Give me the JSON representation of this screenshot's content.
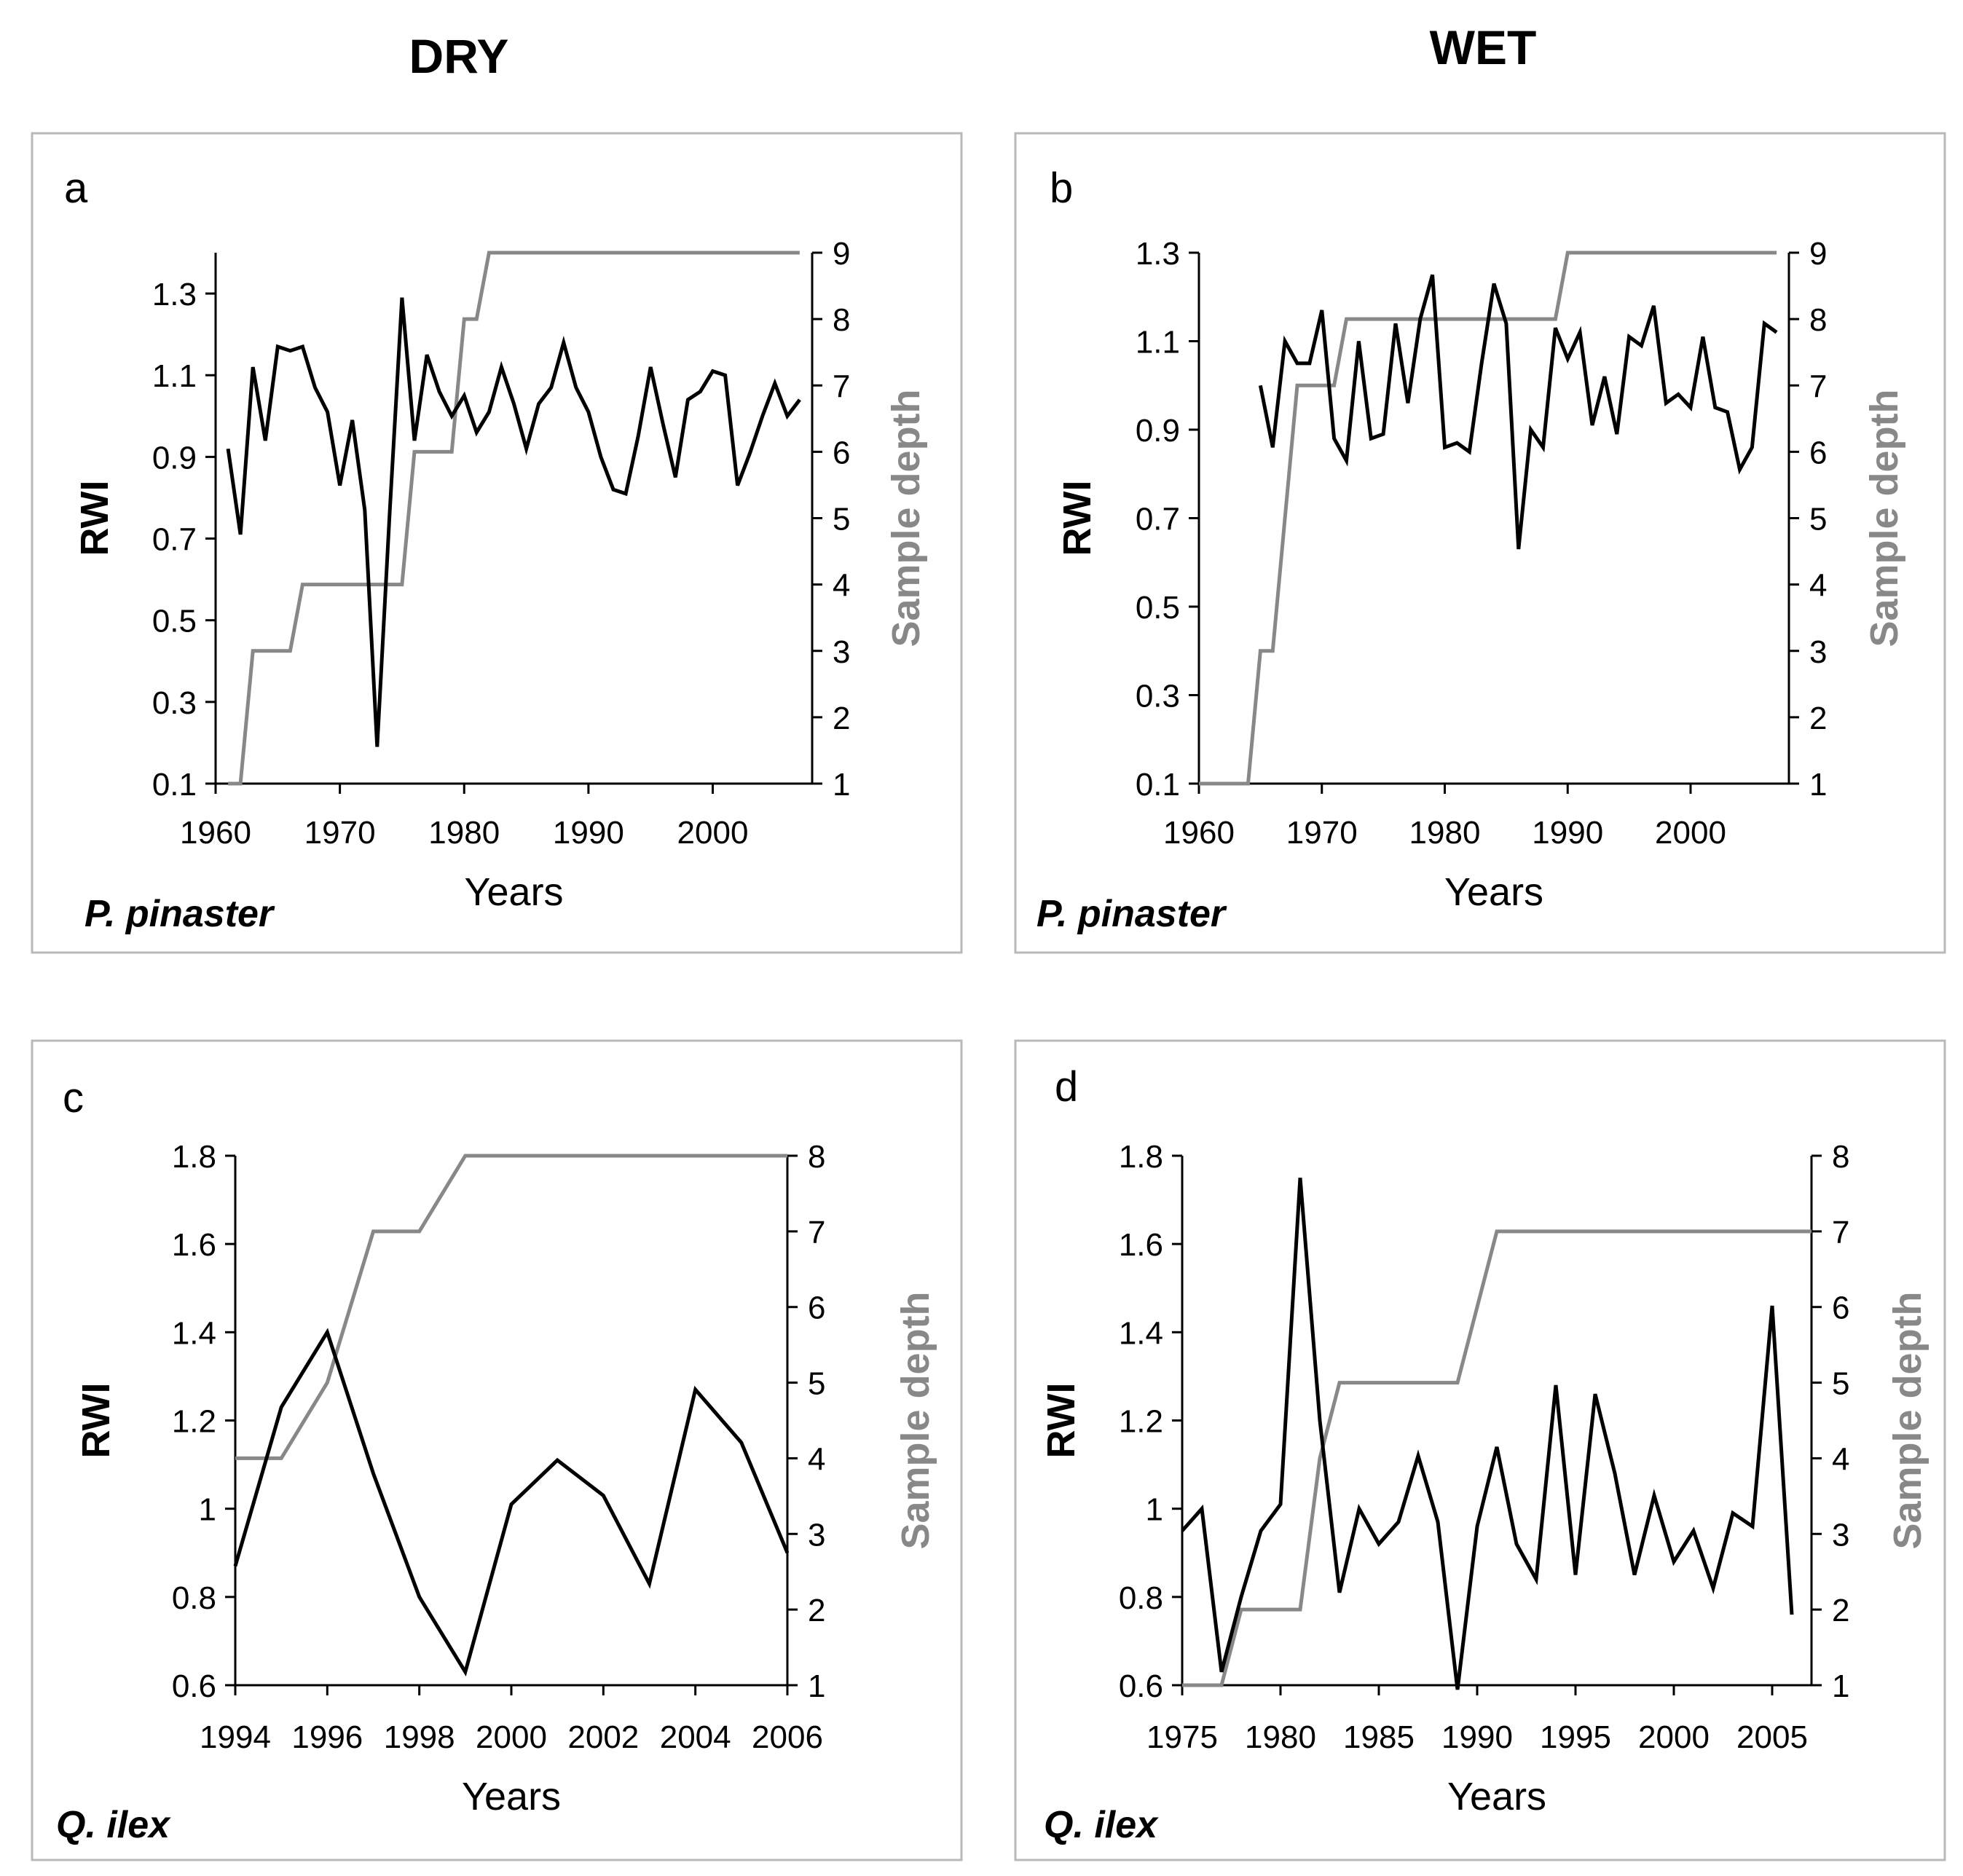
{
  "headers": {
    "dry": "DRY",
    "wet": "WET"
  },
  "colors": {
    "rwi": "#000000",
    "depth": "#888888",
    "frame": "#b9b9b9"
  },
  "chart_data": [
    {
      "type": "line",
      "panel": "a",
      "species": "P. pinaster",
      "xlabel": "Years",
      "ylabel": "RWI",
      "y2label": "Sample depth",
      "xlim": [
        1960,
        2008
      ],
      "xticks": [
        "1960",
        "1970",
        "1980",
        "1990",
        "2000"
      ],
      "xtick_values": [
        1960,
        1970,
        1980,
        1990,
        2000
      ],
      "ylim": [
        0.1,
        1.4
      ],
      "yticks": [
        "0.1",
        "0.3",
        "0.5",
        "0.7",
        "0.9",
        "1.1",
        "1.3"
      ],
      "ytick_values": [
        0.1,
        0.3,
        0.5,
        0.7,
        0.9,
        1.1,
        1.3
      ],
      "y2lim": [
        1,
        9
      ],
      "y2ticks": [
        "1",
        "2",
        "3",
        "4",
        "5",
        "6",
        "7",
        "8",
        "9"
      ],
      "y2tick_values": [
        1,
        2,
        3,
        4,
        5,
        6,
        7,
        8,
        9
      ],
      "series": [
        {
          "name": "RWI",
          "axis": "left",
          "x": [
            1961,
            1962,
            1963,
            1964,
            1965,
            1966,
            1967,
            1968,
            1969,
            1970,
            1971,
            1972,
            1973,
            1974,
            1975,
            1976,
            1977,
            1978,
            1979,
            1980,
            1981,
            1982,
            1983,
            1984,
            1985,
            1986,
            1987,
            1988,
            1989,
            1990,
            1991,
            1992,
            1993,
            1994,
            1995,
            1996,
            1997,
            1998,
            1999,
            2000,
            2001,
            2002,
            2003,
            2004,
            2005,
            2006,
            2007
          ],
          "values": [
            0.92,
            0.71,
            1.12,
            0.94,
            1.17,
            1.16,
            1.17,
            1.07,
            1.01,
            0.83,
            0.99,
            0.77,
            0.19,
            0.76,
            1.29,
            0.94,
            1.15,
            1.06,
            1.0,
            1.05,
            0.96,
            1.01,
            1.12,
            1.03,
            0.92,
            1.03,
            1.07,
            1.18,
            1.07,
            1.01,
            0.9,
            0.82,
            0.81,
            0.95,
            1.12,
            0.98,
            0.85,
            1.04,
            1.06,
            1.11,
            1.1,
            0.83,
            0.91,
            1.0,
            1.08,
            1.0,
            1.04
          ]
        },
        {
          "name": "Sample depth",
          "axis": "right",
          "step": true,
          "x": [
            1961,
            1962,
            1963,
            1964,
            1965,
            1966,
            1967,
            1968,
            1969,
            1970,
            1971,
            1972,
            1973,
            1974,
            1975,
            1976,
            1977,
            1978,
            1979,
            1980,
            1981,
            1982,
            1983,
            2007
          ],
          "values": [
            1,
            1,
            3,
            3,
            3,
            3,
            4,
            4,
            4,
            4,
            4,
            4,
            4,
            4,
            4,
            6,
            6,
            6,
            6,
            8,
            8,
            9,
            9,
            9
          ]
        }
      ]
    },
    {
      "type": "line",
      "panel": "b",
      "species": "P. pinaster",
      "xlabel": "Years",
      "ylabel": "RWI",
      "y2label": "Sample depth",
      "xlim": [
        1960,
        2008
      ],
      "xticks": [
        "1960",
        "1970",
        "1980",
        "1990",
        "2000"
      ],
      "xtick_values": [
        1960,
        1970,
        1980,
        1990,
        2000
      ],
      "ylim": [
        0.1,
        1.3
      ],
      "yticks": [
        "0.1",
        "0.3",
        "0.5",
        "0.7",
        "0.9",
        "1.1",
        "1.3"
      ],
      "ytick_values": [
        0.1,
        0.3,
        0.5,
        0.7,
        0.9,
        1.1,
        1.3
      ],
      "y2lim": [
        1,
        9
      ],
      "y2ticks": [
        "1",
        "2",
        "3",
        "4",
        "5",
        "6",
        "7",
        "8",
        "9"
      ],
      "y2tick_values": [
        1,
        2,
        3,
        4,
        5,
        6,
        7,
        8,
        9
      ],
      "series": [
        {
          "name": "RWI",
          "axis": "left",
          "x": [
            1965,
            1966,
            1967,
            1968,
            1969,
            1970,
            1971,
            1972,
            1973,
            1974,
            1975,
            1976,
            1977,
            1978,
            1979,
            1980,
            1981,
            1982,
            1983,
            1984,
            1985,
            1986,
            1987,
            1988,
            1989,
            1990,
            1991,
            1992,
            1993,
            1994,
            1995,
            1996,
            1997,
            1998,
            1999,
            2000,
            2001,
            2002,
            2003,
            2004,
            2005,
            2006,
            2007
          ],
          "values": [
            1.0,
            0.86,
            1.1,
            1.05,
            1.05,
            1.17,
            0.88,
            0.83,
            1.1,
            0.88,
            0.89,
            1.14,
            0.96,
            1.15,
            1.25,
            0.86,
            0.87,
            0.85,
            1.05,
            1.23,
            1.14,
            0.63,
            0.9,
            0.86,
            1.13,
            1.06,
            1.12,
            0.91,
            1.02,
            0.89,
            1.11,
            1.09,
            1.18,
            0.96,
            0.98,
            0.95,
            1.11,
            0.95,
            0.94,
            0.81,
            0.86,
            1.14,
            1.12
          ]
        },
        {
          "name": "Sample depth",
          "axis": "right",
          "step": true,
          "x": [
            1960,
            1964,
            1965,
            1966,
            1967,
            1968,
            1969,
            1970,
            1971,
            1972,
            1973,
            1989,
            1990,
            1991,
            2007
          ],
          "values": [
            1,
            1,
            3,
            3,
            5,
            7,
            7,
            7,
            7,
            8,
            8,
            8,
            9,
            9,
            9
          ]
        }
      ]
    },
    {
      "type": "line",
      "panel": "c",
      "species": "Q. ilex",
      "xlabel": "Years",
      "ylabel": "RWI",
      "y2label": "Sample depth",
      "xlim": [
        1994,
        2006
      ],
      "xticks": [
        "1994",
        "1996",
        "1998",
        "2000",
        "2002",
        "2004",
        "2006"
      ],
      "xtick_values": [
        1994,
        1996,
        1998,
        2000,
        2002,
        2004,
        2006
      ],
      "ylim": [
        0.6,
        1.8
      ],
      "yticks": [
        "0.6",
        "0.8",
        "1",
        "1.2",
        "1.4",
        "1.6",
        "1.8"
      ],
      "ytick_values": [
        0.6,
        0.8,
        1.0,
        1.2,
        1.4,
        1.6,
        1.8
      ],
      "y2lim": [
        1,
        8
      ],
      "y2ticks": [
        "1",
        "2",
        "3",
        "4",
        "5",
        "6",
        "7",
        "8"
      ],
      "y2tick_values": [
        1,
        2,
        3,
        4,
        5,
        6,
        7,
        8
      ],
      "series": [
        {
          "name": "RWI",
          "axis": "left",
          "x": [
            1994,
            1995,
            1996,
            1997,
            1998,
            1999,
            2000,
            2001,
            2002,
            2003,
            2004,
            2005,
            2006
          ],
          "values": [
            0.87,
            1.23,
            1.4,
            1.08,
            0.8,
            0.63,
            1.01,
            1.11,
            1.03,
            0.83,
            1.27,
            1.15,
            0.9
          ]
        },
        {
          "name": "Sample depth",
          "axis": "right",
          "x": [
            1994,
            1995,
            1996,
            1997,
            1998,
            1999,
            2006
          ],
          "values": [
            4,
            4,
            5,
            7,
            7,
            8,
            8
          ]
        }
      ]
    },
    {
      "type": "line",
      "panel": "d",
      "species": "Q. ilex",
      "xlabel": "Years",
      "ylabel": "RWI",
      "y2label": "Sample depth",
      "xlim": [
        1975,
        2007
      ],
      "xticks": [
        "1975",
        "1980",
        "1985",
        "1990",
        "1995",
        "2000",
        "2005"
      ],
      "xtick_values": [
        1975,
        1980,
        1985,
        1990,
        1995,
        2000,
        2005
      ],
      "ylim": [
        0.6,
        1.8
      ],
      "yticks": [
        "0.6",
        "0.8",
        "1",
        "1.2",
        "1.4",
        "1.6",
        "1.8"
      ],
      "ytick_values": [
        0.6,
        0.8,
        1.0,
        1.2,
        1.4,
        1.6,
        1.8
      ],
      "y2lim": [
        1,
        8
      ],
      "y2ticks": [
        "1",
        "2",
        "3",
        "4",
        "5",
        "6",
        "7",
        "8"
      ],
      "y2tick_values": [
        1,
        2,
        3,
        4,
        5,
        6,
        7,
        8
      ],
      "series": [
        {
          "name": "RWI",
          "axis": "left",
          "x": [
            1975,
            1976,
            1977,
            1978,
            1979,
            1980,
            1981,
            1982,
            1983,
            1984,
            1985,
            1986,
            1987,
            1988,
            1989,
            1990,
            1991,
            1992,
            1993,
            1994,
            1995,
            1996,
            1997,
            1998,
            1999,
            2000,
            2001,
            2002,
            2003,
            2004,
            2005,
            2006
          ],
          "values": [
            0.95,
            1.0,
            0.63,
            0.8,
            0.95,
            1.01,
            1.75,
            1.2,
            0.81,
            1.0,
            0.92,
            0.97,
            1.12,
            0.97,
            0.59,
            0.96,
            1.14,
            0.92,
            0.84,
            1.28,
            0.85,
            1.26,
            1.08,
            0.85,
            1.03,
            0.88,
            0.95,
            0.82,
            0.99,
            0.96,
            1.46,
            0.76
          ]
        },
        {
          "name": "Sample depth",
          "axis": "right",
          "x": [
            1975,
            1977,
            1978,
            1979,
            1980,
            1981,
            1982,
            1983,
            1984,
            1985,
            1986,
            1987,
            1988,
            1989,
            1990,
            1991,
            2007
          ],
          "values": [
            1,
            1,
            2,
            2,
            2,
            2,
            4,
            5,
            5,
            5,
            5,
            5,
            5,
            5,
            6,
            7,
            7
          ]
        }
      ]
    }
  ]
}
